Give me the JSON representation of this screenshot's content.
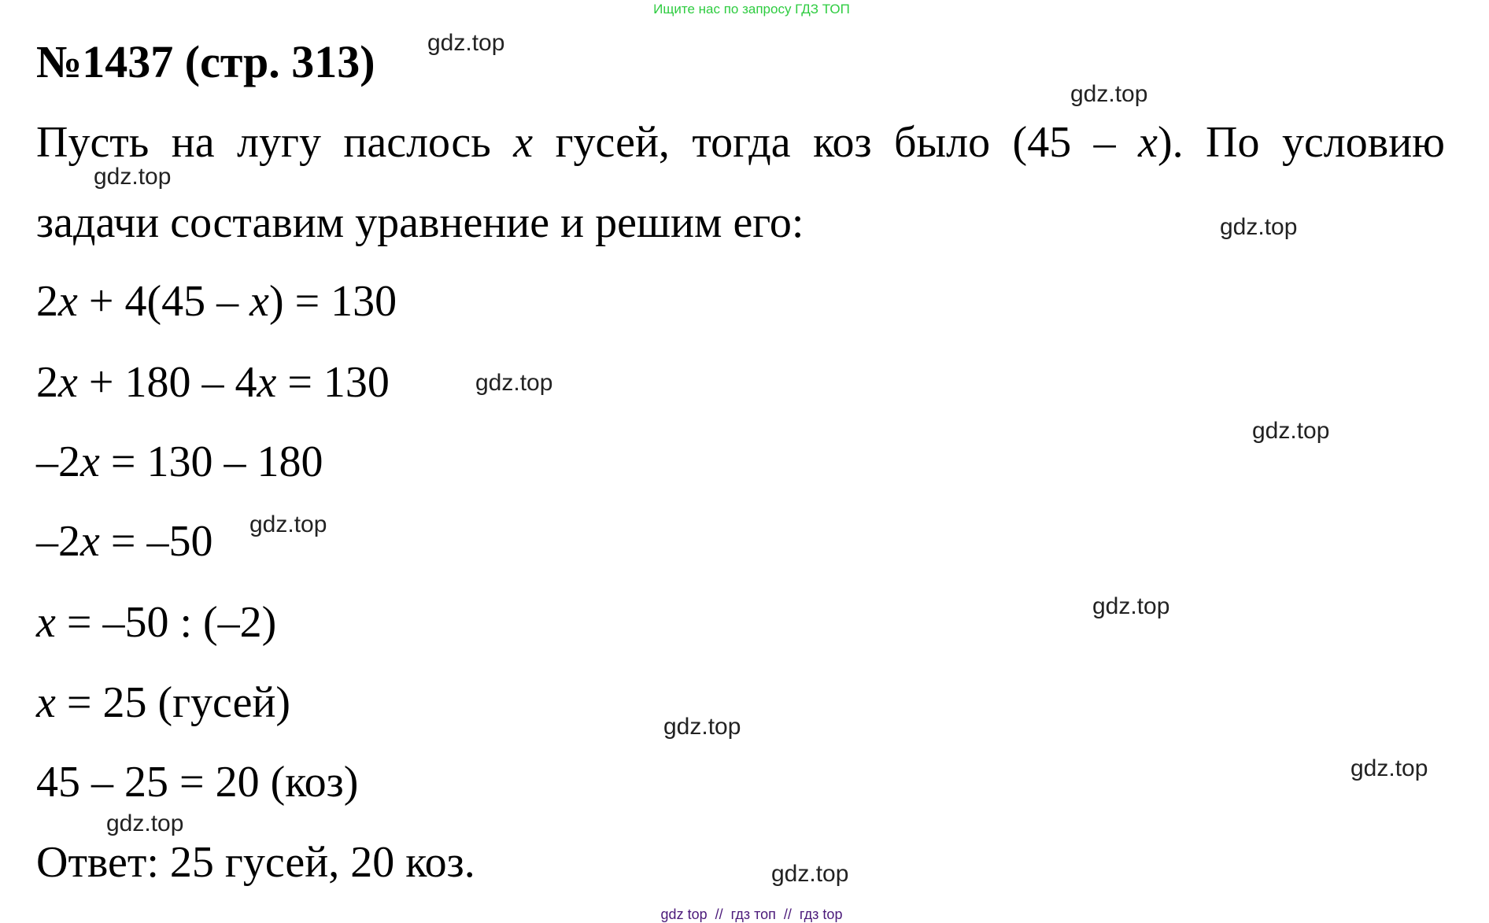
{
  "top_note": "Ищите нас по запросу ГДЗ ТОП",
  "title": "№1437 (стр. 313)",
  "lines": [
    "Пусть на лугу паслось x гусей, тогда коз было (45 – x). По условию",
    "задачи составим уравнение и решим его:",
    "2x + 4(45 – x) = 130",
    "2x + 180 – 4x = 130",
    "–2x = 130 – 180",
    "–2x = –50",
    "x = –50 : (–2)",
    "x = 25 (гусей)",
    "45 – 25 = 20 (коз)",
    "Ответ: 25 гусей, 20 коз."
  ],
  "watermark": "gdz.top",
  "footer": "gdz top  //  гдз топ  //  гдз top"
}
